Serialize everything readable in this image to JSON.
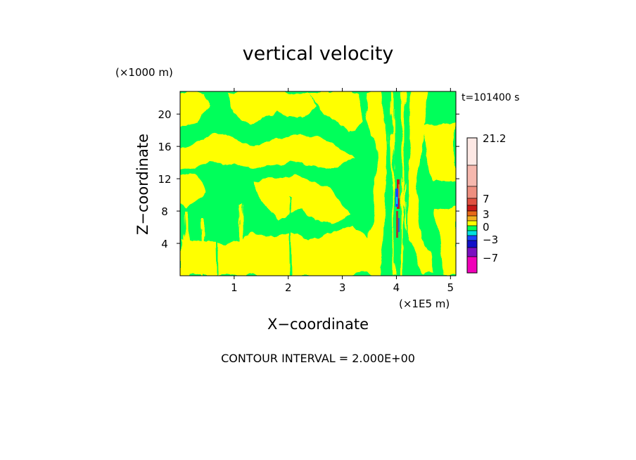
{
  "chart_data": {
    "type": "heatmap",
    "title": "vertical velocity",
    "xlabel": "X−coordinate",
    "ylabel": "Z−coordinate",
    "x_units": "(×1E5 m)",
    "y_units": "(×1000 m)",
    "time_label": "t=101400 s",
    "footer": "CONTOUR INTERVAL = 2.000E+00",
    "x_ticks": [
      "1",
      "2",
      "3",
      "4",
      "5"
    ],
    "y_ticks": [
      "4",
      "8",
      "12",
      "16",
      "20"
    ],
    "xlim": [
      0,
      5.1
    ],
    "ylim": [
      0,
      22.8
    ],
    "colorbar": {
      "labels": [
        "21.2",
        "7",
        "3",
        "0",
        "−3",
        "−7"
      ],
      "levels_top_to_bottom": [
        {
          "range": "above 15",
          "color": "#fde8e4"
        },
        {
          "range": "11 to 15",
          "color": "#f6b8ae"
        },
        {
          "range": "7 to 11",
          "color": "#ee8f80"
        },
        {
          "range": "5 to 7",
          "color": "#e05040"
        },
        {
          "range": "3 to 5",
          "color": "#c81818"
        },
        {
          "range": "2 to 3",
          "color": "#e86818"
        },
        {
          "range": "1 to 2",
          "color": "#f0b020"
        },
        {
          "range": "0 to 1",
          "color": "#ffff00"
        },
        {
          "range": "-1 to 0",
          "color": "#00ff5a"
        },
        {
          "range": "-2 to -1",
          "color": "#00e0e0"
        },
        {
          "range": "-3 to -2",
          "color": "#1c44ff"
        },
        {
          "range": "-5 to -3",
          "color": "#1010c8"
        },
        {
          "range": "-7 to -5",
          "color": "#7a10c0"
        },
        {
          "range": "below -7",
          "color": "#f000b8"
        }
      ]
    }
  }
}
